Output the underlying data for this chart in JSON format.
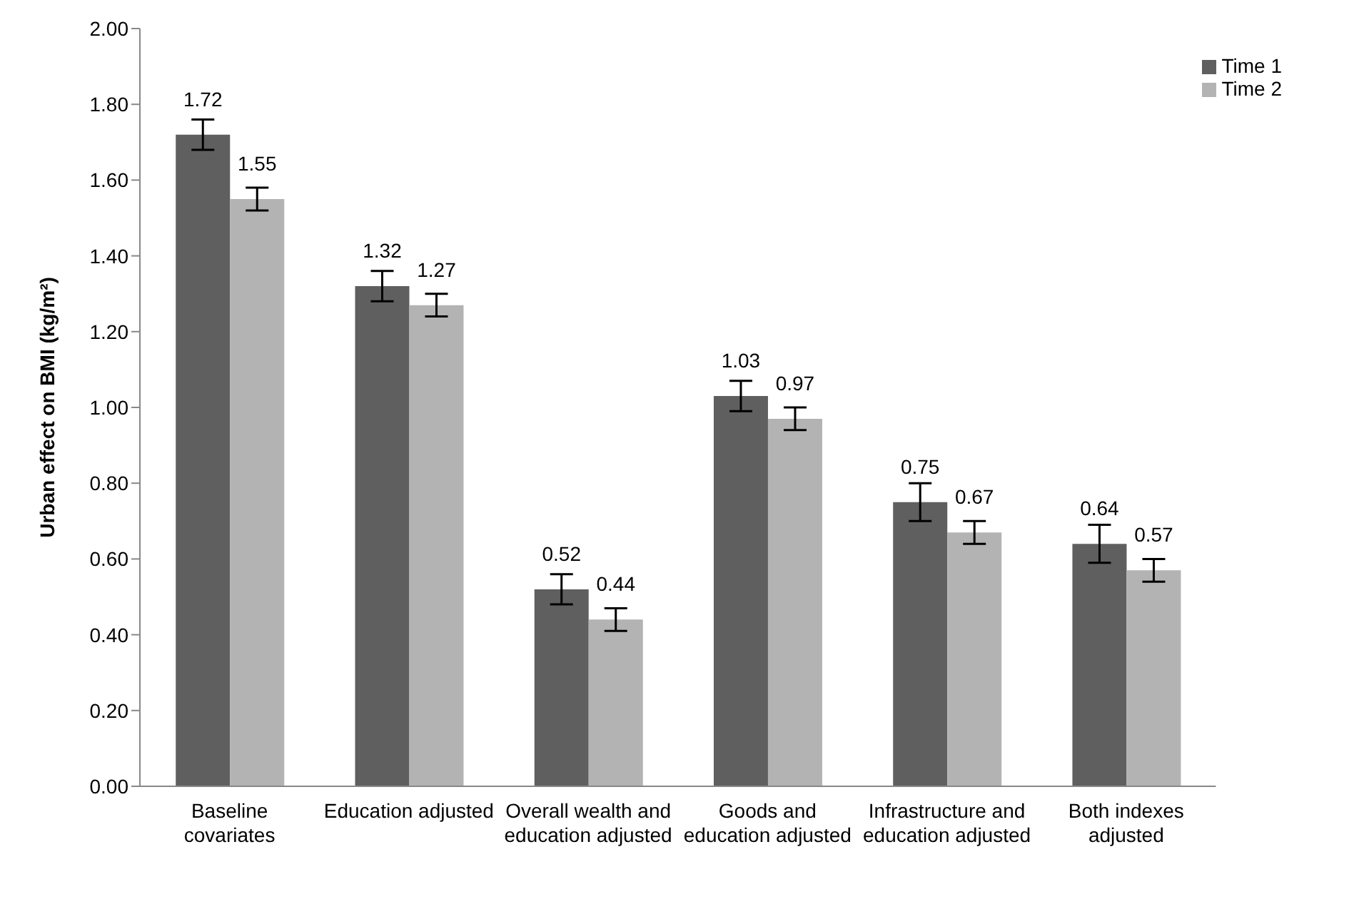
{
  "chart_data": {
    "type": "bar",
    "ylabel": "Urban effect on BMI (kg/m²)",
    "categories": [
      "Baseline covariates",
      "Education adjusted",
      "Overall wealth and education adjusted",
      "Goods and education adjusted",
      "Infrastructure and education adjusted",
      "Both indexes adjusted"
    ],
    "series": [
      {
        "name": "Time 1",
        "color": "#5f5f5f",
        "values": [
          1.72,
          1.32,
          0.52,
          1.03,
          0.75,
          0.64
        ],
        "errors": [
          0.04,
          0.04,
          0.04,
          0.04,
          0.05,
          0.05
        ]
      },
      {
        "name": "Time 2",
        "color": "#b3b3b3",
        "values": [
          1.55,
          1.27,
          0.44,
          0.97,
          0.67,
          0.57
        ],
        "errors": [
          0.03,
          0.03,
          0.03,
          0.03,
          0.03,
          0.03
        ]
      }
    ],
    "ylim": [
      0,
      2
    ],
    "yticks": [
      {
        "value": 0,
        "label": "0.00"
      },
      {
        "value": 0.2,
        "label": "0.20"
      },
      {
        "value": 0.4,
        "label": "0.40"
      },
      {
        "value": 0.6,
        "label": "0.60"
      },
      {
        "value": 0.8,
        "label": "0.80"
      },
      {
        "value": 1,
        "label": "1.00"
      },
      {
        "value": 1.2,
        "label": "1.20"
      },
      {
        "value": 1.4,
        "label": "1.40"
      },
      {
        "value": 1.6,
        "label": "1.60"
      },
      {
        "value": 1.8,
        "label": "1.80"
      },
      {
        "value": 2,
        "label": "2.00"
      }
    ],
    "data_labels": true,
    "legend": "top right",
    "grid": false
  }
}
